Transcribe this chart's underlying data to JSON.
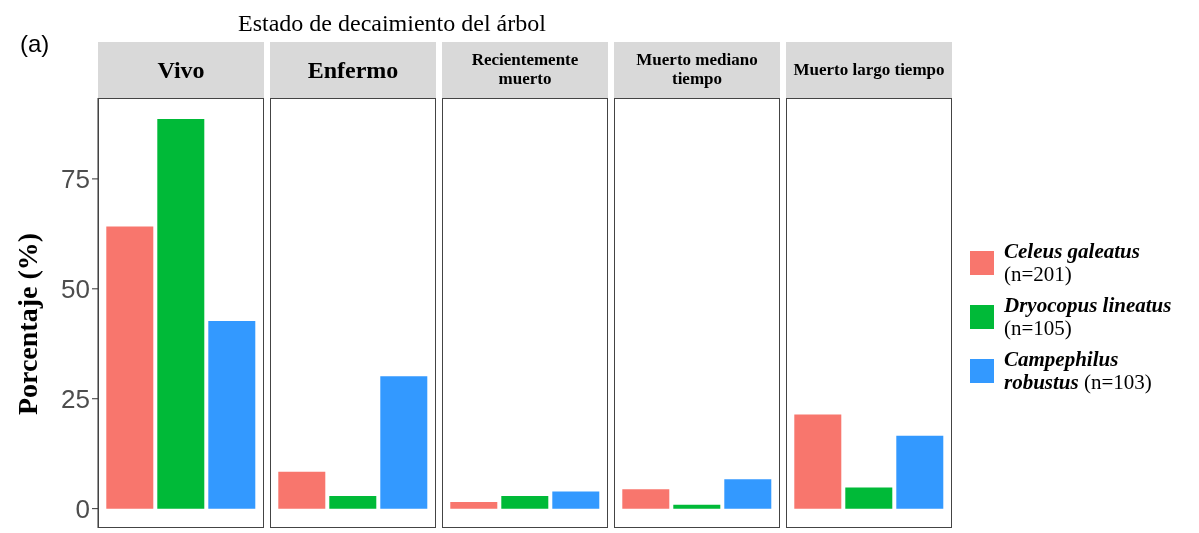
{
  "chart_data": {
    "type": "bar",
    "title": "Estado de decaimiento del árbol",
    "ylabel": "Porcentaje (%)",
    "annotations": [
      "(a)"
    ],
    "categories": [
      "Vivo",
      "Enfermo",
      "Recientemente muerto",
      "Muerto mediano tiempo",
      "Muerto largo tiempo"
    ],
    "series": [
      {
        "name": "Celeus galeatus (n=201)",
        "color": "#f8766d",
        "values": [
          64.2,
          8.4,
          1.5,
          4.4,
          21.4
        ]
      },
      {
        "name": "Dryocopus lineatus (n=105)",
        "color": "#00ba38",
        "values": [
          88.6,
          2.9,
          2.9,
          0.9,
          4.8
        ]
      },
      {
        "name": "Campephilus robustus (n=103)",
        "color": "#3399ff",
        "values": [
          42.7,
          30.1,
          3.9,
          6.7,
          16.6
        ]
      }
    ],
    "ylim": [
      -4.4,
      93.4
    ],
    "yticks": [
      0,
      25,
      50,
      75
    ],
    "grid": false,
    "legend": "right",
    "tick_labels": "y"
  }
}
